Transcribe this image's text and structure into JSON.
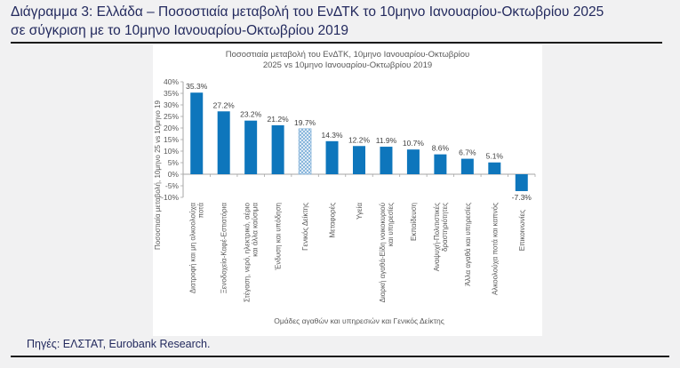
{
  "header": {
    "title_lines": [
      "Διάγραμμα 3: Ελλάδα – Ποσοστιαία μεταβολή του ΕνΔΤΚ το 10μηνο Ιανουαρίου-Οκτωβρίου 2025",
      "σε σύγκριση με το 10μηνο Ιανουαρίου-Οκτωβρίου 2019"
    ],
    "brand_navy": "#232a5e"
  },
  "chart_data": {
    "type": "bar",
    "title": "Ποσοστιαία μεταβολή του ΕνΔΤΚ, 10μηνο Ιανουαρίου-Οκτωβρίου 2025 vs 10μηνο Ιανουαρίου-Οκτωβρίου 2019",
    "title_lines": [
      "Ποσοστιαία μεταβολή του ΕνΔΤΚ, 10μηνο Ιανουαρίου-Οκτωβρίου",
      "2025 vs 10μηνο Ιανουαρίου-Οκτωβρίου 2019"
    ],
    "xlabel": "Ομάδες αγαθών και υπηρεσιών και Γενικός Δείκτης",
    "ylabel": "Ποσοστιαία μεταβολή, 10μηνο 25 vs 10μηνο 19",
    "ylim": [
      -10,
      40
    ],
    "yticks": [
      40,
      35,
      30,
      25,
      20,
      15,
      10,
      5,
      0,
      -5,
      -10
    ],
    "ytick_labels": [
      "40%",
      "35%",
      "30%",
      "25%",
      "20%",
      "15%",
      "10%",
      "5%",
      "0%",
      "-5%",
      "-10%"
    ],
    "grid": false,
    "legend": "none",
    "categories": [
      "Διατροφή και μη αλκοολούχα ποτά",
      "Ξενοδοχεία-Καφέ-Εστιατόρια",
      "Στέγαση, νερό, ηλεκτρικό, αέριο και άλλα καύσιμα",
      "Ένδυση και υπόδηση",
      "Γενικός Δείκτης",
      "Μεταφορές",
      "Υγεία",
      "Διαρκή αγαθά-Είδη νοικοκυριού και υπηρεσίες",
      "Εκπαίδευση",
      "Αναψυχή-Πολιτιστικές δραστηριότητες",
      "Άλλα αγαθά και υπηρεσίες",
      "Αλκοολούχα ποτά και καπνός",
      "Επικοινωνίες"
    ],
    "category_lines": [
      [
        "Διατροφή και μη αλκοολούχα",
        "ποτά"
      ],
      [
        "Ξενοδοχεία-Καφέ-Εστιατόρια"
      ],
      [
        "Στέγαση, νερό, ηλεκτρικό, αέριο",
        "και άλλα καύσιμα"
      ],
      [
        "Ένδυση και υπόδηση"
      ],
      [
        "Γενικός Δείκτης"
      ],
      [
        "Μεταφορές"
      ],
      [
        "Υγεία"
      ],
      [
        "Διαρκή αγαθά-Είδη νοικοκυριού",
        "και υπηρεσίες"
      ],
      [
        "Εκπαίδευση"
      ],
      [
        "Αναψυχή-Πολιτιστικές",
        "δραστηριότητες"
      ],
      [
        "Άλλα αγαθά και υπηρεσίες"
      ],
      [
        "Αλκοολούχα ποτά και καπνός"
      ],
      [
        "Επικοινωνίες"
      ]
    ],
    "values": [
      35.3,
      27.2,
      23.2,
      21.2,
      19.7,
      14.3,
      12.2,
      11.9,
      10.7,
      8.6,
      6.7,
      5.1,
      -7.3
    ],
    "value_labels": [
      "35.3%",
      "27.2%",
      "23.2%",
      "21.2%",
      "19.7%",
      "14.3%",
      "12.2%",
      "11.9%",
      "10.7%",
      "8.6%",
      "6.7%",
      "5.1%",
      "-7.3%"
    ],
    "hatched_index": 4,
    "bar_color": "#0e76bc",
    "hatch_line_color": "#7fb0d9",
    "axis_color": "#a6a6a6",
    "tick_text_color": "#595959",
    "value_label_color": "#3f3f3f"
  },
  "footer": {
    "text": "Πηγές: ΕΛΣΤΑΤ, Eurobank Research."
  }
}
